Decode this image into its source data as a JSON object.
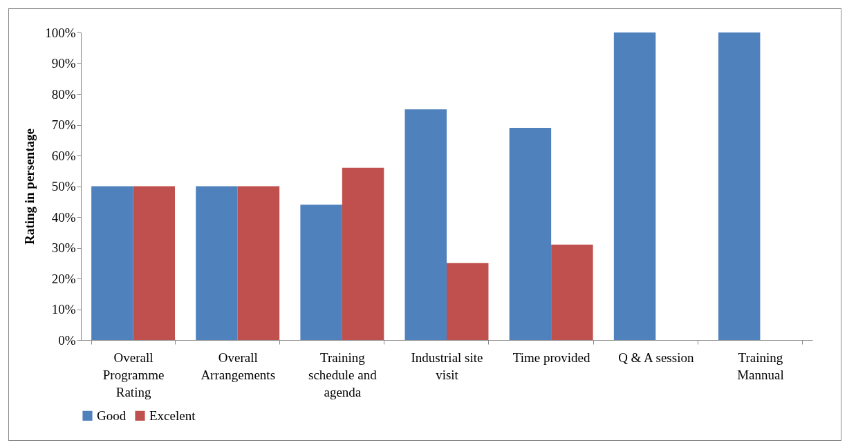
{
  "chart_data": {
    "type": "bar",
    "ylabel": "Rating in persentage",
    "categories": [
      "Overall Programme Rating",
      "Overall Arrangements",
      "Training schedule and agenda",
      "Industrial site visit",
      "Time provided",
      "Q & A session",
      "Training Mannual"
    ],
    "series": [
      {
        "name": "Good",
        "color": "#4f81bd",
        "values": [
          50,
          50,
          44,
          75,
          69,
          100,
          100
        ]
      },
      {
        "name": "Excelent",
        "color": "#c0504d",
        "values": [
          50,
          50,
          56,
          25,
          31,
          0,
          0
        ]
      }
    ],
    "ylim": [
      0,
      100
    ],
    "yticks": [
      {
        "value": 0,
        "label": "0%"
      },
      {
        "value": 10,
        "label": "10%"
      },
      {
        "value": 20,
        "label": "20%"
      },
      {
        "value": 30,
        "label": "30%"
      },
      {
        "value": 40,
        "label": "40%"
      },
      {
        "value": 50,
        "label": "50%"
      },
      {
        "value": 60,
        "label": "60%"
      },
      {
        "value": 70,
        "label": "70%"
      },
      {
        "value": 80,
        "label": "80%"
      },
      {
        "value": 90,
        "label": "90%"
      },
      {
        "value": 100,
        "label": "100%"
      }
    ],
    "grid": false,
    "legend": "bottom"
  }
}
